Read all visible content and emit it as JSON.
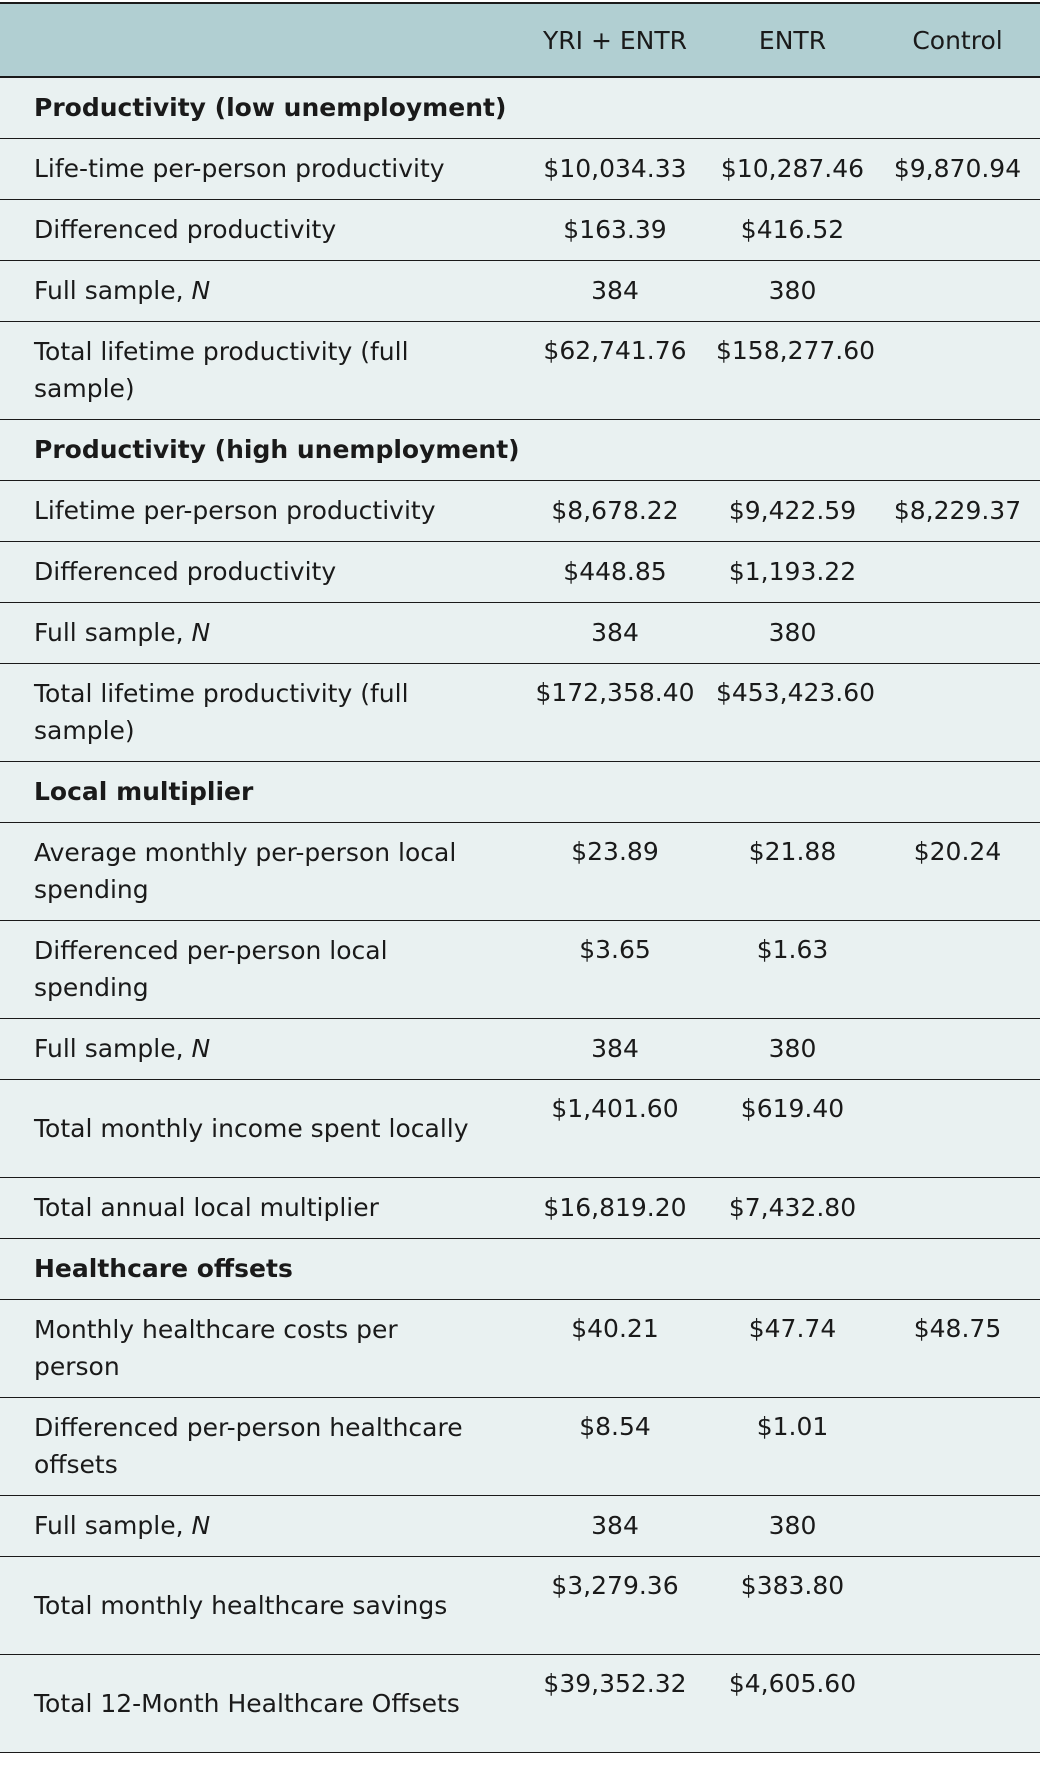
{
  "columns": [
    "",
    "YRI + ENTR",
    "ENTR",
    "Control"
  ],
  "sections": [
    {
      "title": "Productivity (low unemployment)",
      "rows": [
        {
          "label": "Life-time per-person productivity",
          "yri": "$10,034.33",
          "entr": "$10,287.46",
          "control": "$9,870.94"
        },
        {
          "label": "Differenced productivity",
          "yri": "$163.39",
          "entr": "$416.52",
          "control": ""
        },
        {
          "label": "Full sample, ",
          "label_italic": "N",
          "yri": "384",
          "entr": "380",
          "control": ""
        },
        {
          "label": "Total lifetime productivity (full sample)",
          "yri": "$62,741.76",
          "entr": "$158,277.60",
          "control": ""
        }
      ]
    },
    {
      "title": "Productivity (high unemployment)",
      "rows": [
        {
          "label": "Lifetime per-person productivity",
          "yri": "$8,678.22",
          "entr": "$9,422.59",
          "control": "$8,229.37"
        },
        {
          "label": "Differenced productivity",
          "yri": "$448.85",
          "entr": "$1,193.22",
          "control": ""
        },
        {
          "label": "Full sample, ",
          "label_italic": "N",
          "yri": "384",
          "entr": "380",
          "control": ""
        },
        {
          "label": "Total lifetime productivity (full sample)",
          "yri": "$172,358.40",
          "entr": "$453,423.60",
          "control": ""
        }
      ]
    },
    {
      "title": "Local multiplier",
      "rows": [
        {
          "label": "Average monthly per-person local spending",
          "yri": "$23.89",
          "entr": "$21.88",
          "control": "$20.24"
        },
        {
          "label": "Differenced per-person local spending",
          "yri": "$3.65",
          "entr": "$1.63",
          "control": ""
        },
        {
          "label": "Full sample, ",
          "label_italic": "N",
          "yri": "384",
          "entr": "380",
          "control": ""
        },
        {
          "label": "Total monthly income spent locally",
          "yri": "$1,401.60",
          "entr": "$619.40",
          "control": ""
        },
        {
          "label": "Total annual local multiplier",
          "yri": "$16,819.20",
          "entr": "$7,432.80",
          "control": ""
        }
      ]
    },
    {
      "title": "Healthcare offsets",
      "rows": [
        {
          "label": "Monthly healthcare costs per person",
          "yri": "$40.21",
          "entr": "$47.74",
          "control": "$48.75"
        },
        {
          "label": "Differenced per-person healthcare offsets",
          "yri": "$8.54",
          "entr": "$1.01",
          "control": ""
        },
        {
          "label": "Full sample, ",
          "label_italic": "N",
          "yri": "384",
          "entr": "380",
          "control": ""
        },
        {
          "label": "Total monthly healthcare savings",
          "yri": "$3,279.36",
          "entr": "$383.80",
          "control": ""
        },
        {
          "label": "Total 12-Month Healthcare Offsets",
          "yri": "$39,352.32",
          "entr": "$4,605.60",
          "control": ""
        }
      ]
    }
  ]
}
